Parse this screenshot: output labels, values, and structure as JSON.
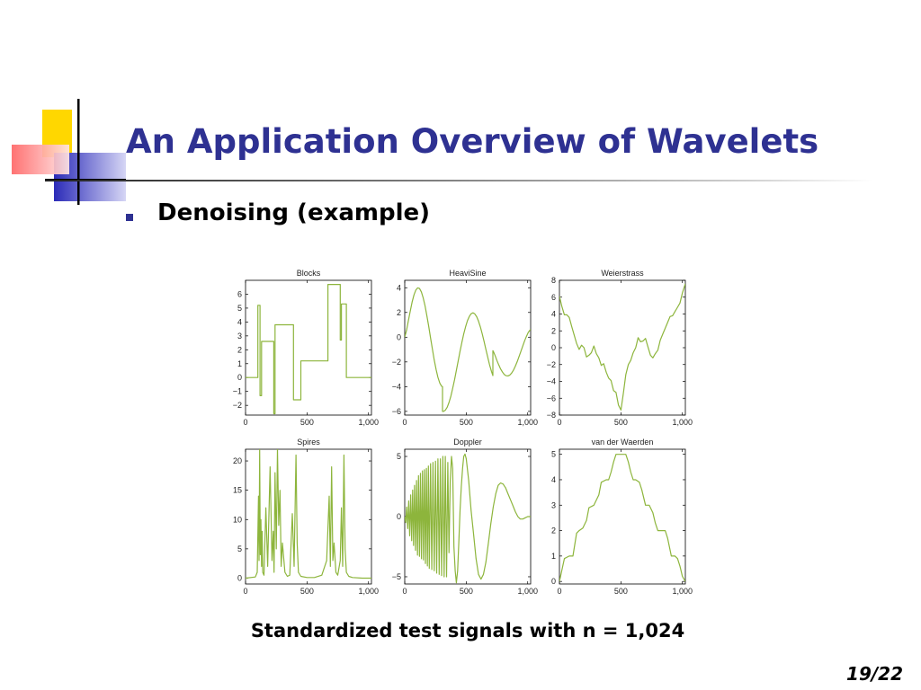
{
  "slide": {
    "title": "An Application Overview of Wavelets",
    "bullet": "Denoising (example)",
    "caption": "Standardized test signals with n = 1,024",
    "page_number": "19/22"
  },
  "colors": {
    "title": "#2E3192",
    "signal": "#8DB53C",
    "accent_yellow": "#FFD700",
    "accent_red": "#FF3333",
    "accent_blue": "#3333CC"
  },
  "chart_data": [
    {
      "type": "line",
      "title": "Blocks",
      "xlim": [
        0,
        1024
      ],
      "ylim": [
        -2.7,
        7
      ],
      "xticks": [
        0,
        500,
        1000
      ],
      "xtick_labels": [
        "0",
        "500",
        "1,000"
      ],
      "yticks": [
        -2,
        -1,
        0,
        1,
        2,
        3,
        4,
        5,
        6
      ],
      "ytick_labels": [
        "−2",
        "−1",
        "0",
        "1",
        "2",
        "3",
        "4",
        "5",
        "6"
      ],
      "x": [
        0,
        100,
        100,
        118,
        118,
        130,
        130,
        155,
        155,
        230,
        230,
        240,
        240,
        260,
        260,
        390,
        390,
        450,
        450,
        670,
        670,
        770,
        770,
        780,
        780,
        820,
        820,
        1024
      ],
      "y": [
        0,
        0,
        5.2,
        5.2,
        -1.3,
        -1.3,
        2.6,
        2.6,
        2.6,
        2.6,
        -2.6,
        -2.6,
        3.8,
        3.8,
        3.8,
        3.8,
        -1.6,
        -1.6,
        1.2,
        1.2,
        6.7,
        6.7,
        2.7,
        2.7,
        5.3,
        5.3,
        0,
        0
      ]
    },
    {
      "type": "line",
      "title": "HeaviSine",
      "xlim": [
        0,
        1024
      ],
      "ylim": [
        -6.3,
        4.6
      ],
      "xticks": [
        0,
        500,
        1000
      ],
      "xtick_labels": [
        "0",
        "500",
        "1,000"
      ],
      "yticks": [
        -6,
        -4,
        -2,
        0,
        2,
        4
      ],
      "ytick_labels": [
        "−6",
        "−4",
        "−2",
        "0",
        "2",
        "4"
      ],
      "x": [
        0,
        15,
        30,
        45,
        60,
        75,
        90,
        105,
        120,
        135,
        150,
        165,
        180,
        195,
        210,
        225,
        240,
        255,
        270,
        285,
        300,
        307,
        307,
        315,
        330,
        345,
        360,
        375,
        390,
        405,
        420,
        435,
        450,
        465,
        480,
        495,
        510,
        525,
        540,
        555,
        570,
        585,
        600,
        615,
        630,
        645,
        660,
        675,
        690,
        705,
        717,
        717,
        720,
        735,
        750,
        765,
        780,
        795,
        810,
        825,
        840,
        855,
        870,
        885,
        900,
        915,
        930,
        945,
        960,
        975,
        990,
        1005,
        1024
      ],
      "y": [
        0.0,
        0.59,
        1.36,
        2.13,
        2.84,
        3.42,
        3.81,
        3.99,
        3.94,
        3.66,
        3.18,
        2.53,
        1.74,
        0.86,
        -0.06,
        -0.98,
        -1.85,
        -2.62,
        -3.25,
        -3.71,
        -3.97,
        -4.0,
        -6.0,
        -6.0,
        -5.91,
        -5.67,
        -5.28,
        -4.77,
        -4.14,
        -3.44,
        -2.68,
        -1.9,
        -1.13,
        -0.4,
        0.27,
        0.85,
        1.33,
        1.68,
        1.9,
        1.97,
        1.88,
        1.66,
        1.3,
        0.83,
        0.28,
        -0.34,
        -0.98,
        -1.62,
        -2.23,
        -2.76,
        -3.1,
        -1.1,
        -1.13,
        -1.49,
        -1.89,
        -2.25,
        -2.57,
        -2.83,
        -3.02,
        -3.12,
        -3.13,
        -3.06,
        -2.9,
        -2.65,
        -2.34,
        -1.97,
        -1.56,
        -1.13,
        -0.7,
        -0.29,
        0.08,
        0.39,
        0.64
      ]
    },
    {
      "type": "line",
      "title": "Weierstrass",
      "xlim": [
        0,
        1024
      ],
      "ylim": [
        -8,
        8
      ],
      "xticks": [
        0,
        500,
        1000
      ],
      "xtick_labels": [
        "0",
        "500",
        "1,000"
      ],
      "yticks": [
        -8,
        -6,
        -4,
        -2,
        0,
        2,
        4,
        6,
        8
      ],
      "ytick_labels": [
        "−8",
        "−6",
        "−4",
        "−2",
        "0",
        "2",
        "4",
        "6",
        "8"
      ],
      "x": [
        0,
        20,
        40,
        60,
        80,
        100,
        120,
        140,
        160,
        180,
        200,
        220,
        240,
        260,
        280,
        300,
        320,
        340,
        360,
        380,
        400,
        420,
        440,
        460,
        480,
        500,
        520,
        540,
        560,
        580,
        600,
        620,
        640,
        660,
        680,
        700,
        720,
        740,
        760,
        780,
        800,
        820,
        840,
        860,
        880,
        900,
        920,
        940,
        960,
        980,
        1000,
        1024
      ],
      "y": [
        6.1,
        4.9,
        3.9,
        3.9,
        3.6,
        2.5,
        1.5,
        0.5,
        -0.2,
        0.3,
        0.0,
        -1.1,
        -0.9,
        -0.6,
        0.2,
        -0.7,
        -1.2,
        -2.1,
        -1.9,
        -2.9,
        -3.6,
        -3.9,
        -5.1,
        -5.3,
        -6.8,
        -7.4,
        -5.4,
        -3.2,
        -2.0,
        -1.5,
        -0.6,
        0.0,
        1.2,
        0.7,
        0.8,
        1.1,
        0.1,
        -0.9,
        -1.2,
        -0.7,
        -0.3,
        0.9,
        1.6,
        2.3,
        3.0,
        3.7,
        3.8,
        4.3,
        4.8,
        5.3,
        6.5,
        7.6
      ]
    },
    {
      "type": "line",
      "title": "Spires",
      "xlim": [
        0,
        1024
      ],
      "ylim": [
        -1,
        22
      ],
      "xticks": [
        0,
        500,
        1000
      ],
      "xtick_labels": [
        "0",
        "500",
        "1,000"
      ],
      "yticks": [
        0,
        5,
        10,
        15,
        20
      ],
      "ytick_labels": [
        "0",
        "5",
        "10",
        "15",
        "20"
      ],
      "x": [
        0,
        80,
        95,
        105,
        110,
        115,
        120,
        125,
        130,
        135,
        140,
        150,
        165,
        180,
        200,
        215,
        225,
        232,
        240,
        250,
        260,
        270,
        280,
        290,
        300,
        320,
        340,
        360,
        380,
        395,
        410,
        420,
        430,
        450,
        500,
        560,
        620,
        660,
        680,
        690,
        700,
        710,
        720,
        735,
        750,
        770,
        780,
        790,
        800,
        810,
        820,
        840,
        870,
        950,
        1024
      ],
      "y": [
        0.0,
        0.2,
        1.0,
        14.0,
        3.0,
        22.0,
        4.0,
        10.0,
        2.0,
        8.0,
        1.0,
        0.5,
        12.0,
        2.0,
        19.0,
        3.0,
        8.0,
        1.0,
        18.0,
        5.0,
        22.0,
        9.0,
        15.0,
        2.0,
        6.0,
        1.0,
        0.3,
        0.5,
        11.0,
        2.0,
        21.0,
        6.0,
        1.0,
        0.3,
        0.1,
        0.1,
        0.5,
        3.0,
        14.0,
        2.0,
        19.0,
        3.0,
        6.0,
        1.0,
        0.5,
        3.0,
        12.0,
        2.0,
        21.0,
        5.0,
        1.0,
        0.3,
        0.1,
        0.0,
        0.0
      ]
    },
    {
      "type": "line",
      "title": "Doppler",
      "xlim": [
        0,
        1024
      ],
      "ylim": [
        -5.6,
        5.6
      ],
      "xticks": [
        0,
        500,
        1000
      ],
      "xtick_labels": [
        "0",
        "500",
        "1,000"
      ],
      "yticks": [
        -5,
        0,
        5
      ],
      "ytick_labels": [
        "−5",
        "0",
        "5"
      ],
      "x": [
        0,
        8,
        16,
        24,
        32,
        40,
        48,
        56,
        64,
        72,
        80,
        88,
        96,
        104,
        112,
        120,
        128,
        136,
        144,
        152,
        160,
        168,
        176,
        184,
        192,
        200,
        210,
        220,
        230,
        240,
        250,
        260,
        270,
        280,
        290,
        300,
        310,
        320,
        330,
        340,
        350,
        360,
        370,
        380,
        390,
        400,
        410,
        420,
        430,
        440,
        450,
        460,
        470,
        480,
        490,
        500,
        520,
        540,
        560,
        580,
        600,
        620,
        640,
        660,
        680,
        700,
        720,
        740,
        760,
        780,
        800,
        820,
        840,
        860,
        880,
        900,
        920,
        940,
        960,
        980,
        1000,
        1024
      ],
      "y": [
        0.0,
        -0.5,
        0.8,
        -1.0,
        1.3,
        -1.6,
        1.8,
        -2.0,
        2.2,
        -2.4,
        2.6,
        -2.8,
        3.0,
        -3.2,
        3.4,
        -3.3,
        3.6,
        -3.5,
        3.8,
        -3.6,
        3.9,
        -3.9,
        4.0,
        -4.1,
        4.2,
        -4.3,
        4.4,
        -4.4,
        4.5,
        -4.5,
        4.6,
        -4.7,
        4.8,
        -4.8,
        4.8,
        -4.9,
        5.0,
        -5.0,
        5.0,
        -5.0,
        4.5,
        -3.0,
        3.0,
        5.0,
        4.0,
        -2.5,
        -4.5,
        -5.5,
        -4.5,
        -2.0,
        0.5,
        2.5,
        4.0,
        5.0,
        5.2,
        4.8,
        3.0,
        0.5,
        -1.5,
        -3.5,
        -4.8,
        -5.2,
        -4.8,
        -3.8,
        -2.2,
        -0.6,
        0.8,
        1.9,
        2.6,
        2.8,
        2.7,
        2.4,
        1.9,
        1.4,
        0.9,
        0.4,
        0.0,
        -0.2,
        -0.2,
        -0.1,
        0.0,
        0.0
      ]
    },
    {
      "type": "line",
      "title": "van der Waerden",
      "xlim": [
        0,
        1024
      ],
      "ylim": [
        -0.1,
        5.2
      ],
      "xticks": [
        0,
        500,
        1000
      ],
      "xtick_labels": [
        "0",
        "500",
        "1,000"
      ],
      "yticks": [
        0,
        1,
        2,
        3,
        4,
        5
      ],
      "ytick_labels": [
        "0",
        "1",
        "2",
        "3",
        "4",
        "5"
      ],
      "x": [
        0,
        40,
        80,
        110,
        140,
        160,
        190,
        220,
        240,
        280,
        320,
        340,
        380,
        400,
        420,
        440,
        460,
        480,
        500,
        540,
        560,
        580,
        600,
        620,
        650,
        670,
        700,
        730,
        760,
        780,
        800,
        830,
        860,
        880,
        910,
        940,
        960,
        980,
        1000,
        1024
      ],
      "y": [
        0,
        0.9,
        1.0,
        1.0,
        1.9,
        2.0,
        2.1,
        2.4,
        2.9,
        3.0,
        3.4,
        3.9,
        4.0,
        4.0,
        4.3,
        4.7,
        5.0,
        5.0,
        5.0,
        5.0,
        4.7,
        4.3,
        4.0,
        4.0,
        3.9,
        3.6,
        3.0,
        3.0,
        2.7,
        2.3,
        2.0,
        2.0,
        2.0,
        1.7,
        1.0,
        1.0,
        0.9,
        0.6,
        0.2,
        0.0
      ]
    }
  ]
}
